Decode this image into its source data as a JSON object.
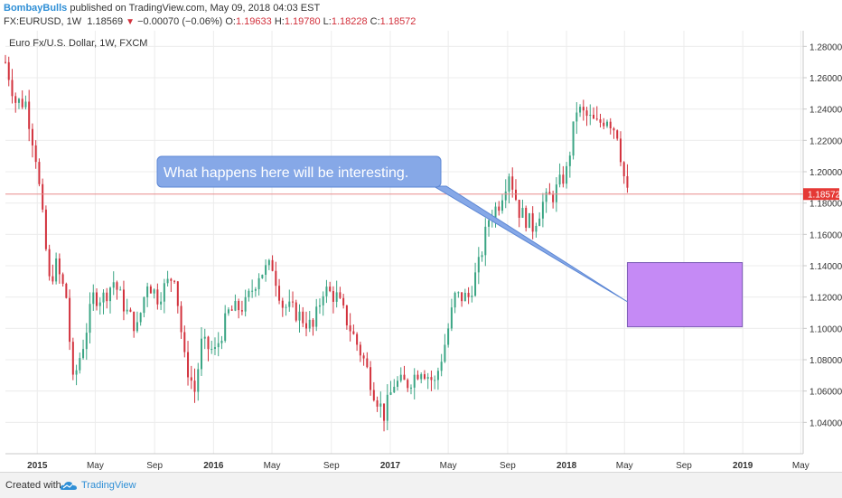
{
  "header": {
    "author": "BombayBulls",
    "published_text": "published on TradingView.com, May 09, 2018 04:03 EST",
    "symbol": "FX:EURUSD, 1W",
    "last": "1.18569",
    "down_arrow": "▼",
    "change": "−0.00070 (−0.06%)",
    "o_label": "O:",
    "o_value": "1.19633",
    "h_label": "H:",
    "h_value": "1.19780",
    "l_label": "L:",
    "l_value": "1.18228",
    "c_label": "C:",
    "c_value": "1.18572"
  },
  "footer": {
    "created_with": "Created with",
    "brand": "TradingView",
    "logo_icon": "tradingview-cloud-icon"
  },
  "colors": {
    "up": "#3aa584",
    "down": "#d2313c",
    "annotation_fill": "#86a8e7",
    "annotation_border": "#5b86d4",
    "box_fill": "#c58af5",
    "box_border": "#7a5cb4",
    "price_line": "#e88b8b",
    "brand": "#2f8fd6"
  },
  "chart_data": {
    "type": "candlestick",
    "title": "Euro Fx/U.S. Dollar, 1W, FXCM",
    "timeframe": "1W",
    "x_range": [
      "2014-10-27",
      "2019-05-06"
    ],
    "ylim": [
      1.02,
      1.29
    ],
    "y_ticks": [
      "1.28000",
      "1.26000",
      "1.24000",
      "1.22000",
      "1.20000",
      "1.18000",
      "1.16000",
      "1.14000",
      "1.12000",
      "1.10000",
      "1.08000",
      "1.06000",
      "1.04000"
    ],
    "x_ticks": [
      {
        "label": "2015",
        "date": "2015-01-01",
        "bold": true
      },
      {
        "label": "May",
        "date": "2015-05-01",
        "bold": false
      },
      {
        "label": "Sep",
        "date": "2015-09-01",
        "bold": false
      },
      {
        "label": "2016",
        "date": "2016-01-01",
        "bold": true
      },
      {
        "label": "May",
        "date": "2016-05-01",
        "bold": false
      },
      {
        "label": "Sep",
        "date": "2016-09-01",
        "bold": false
      },
      {
        "label": "2017",
        "date": "2017-01-01",
        "bold": true
      },
      {
        "label": "May",
        "date": "2017-05-01",
        "bold": false
      },
      {
        "label": "Sep",
        "date": "2017-09-01",
        "bold": false
      },
      {
        "label": "2018",
        "date": "2018-01-01",
        "bold": true
      },
      {
        "label": "May",
        "date": "2018-05-01",
        "bold": false
      },
      {
        "label": "Sep",
        "date": "2018-09-01",
        "bold": false
      },
      {
        "label": "2019",
        "date": "2019-01-01",
        "bold": true
      },
      {
        "label": "May",
        "date": "2019-05-01",
        "bold": false
      }
    ],
    "grid": true,
    "last_price": 1.18572,
    "last_price_label": "1.18572",
    "annotation": {
      "text": "What happens here will be interesting.",
      "pointer_to": {
        "date": "2018-05-07",
        "price": 1.117
      }
    },
    "highlight_box": {
      "date_start": "2018-05-07",
      "date_end": "2018-12-31",
      "price_top": 1.142,
      "price_bottom": 1.101
    },
    "close_path": [
      {
        "date": "2014-10-27",
        "price": 1.27
      },
      {
        "date": "2014-11-17",
        "price": 1.245
      },
      {
        "date": "2014-12-08",
        "price": 1.244
      },
      {
        "date": "2014-12-29",
        "price": 1.21
      },
      {
        "date": "2015-01-12",
        "price": 1.17
      },
      {
        "date": "2015-01-26",
        "price": 1.13
      },
      {
        "date": "2015-02-09",
        "price": 1.14
      },
      {
        "date": "2015-03-02",
        "price": 1.12
      },
      {
        "date": "2015-03-16",
        "price": 1.065
      },
      {
        "date": "2015-04-06",
        "price": 1.09
      },
      {
        "date": "2015-04-27",
        "price": 1.12
      },
      {
        "date": "2015-05-18",
        "price": 1.12
      },
      {
        "date": "2015-06-08",
        "price": 1.13
      },
      {
        "date": "2015-07-06",
        "price": 1.11
      },
      {
        "date": "2015-07-27",
        "price": 1.1
      },
      {
        "date": "2015-08-17",
        "price": 1.13
      },
      {
        "date": "2015-09-07",
        "price": 1.12
      },
      {
        "date": "2015-10-12",
        "price": 1.135
      },
      {
        "date": "2015-11-02",
        "price": 1.08
      },
      {
        "date": "2015-11-23",
        "price": 1.06
      },
      {
        "date": "2015-12-07",
        "price": 1.09
      },
      {
        "date": "2016-01-04",
        "price": 1.085
      },
      {
        "date": "2016-02-01",
        "price": 1.11
      },
      {
        "date": "2016-03-07",
        "price": 1.115
      },
      {
        "date": "2016-04-04",
        "price": 1.135
      },
      {
        "date": "2016-05-02",
        "price": 1.14
      },
      {
        "date": "2016-05-23",
        "price": 1.115
      },
      {
        "date": "2016-06-20",
        "price": 1.11
      },
      {
        "date": "2016-07-25",
        "price": 1.1
      },
      {
        "date": "2016-08-15",
        "price": 1.125
      },
      {
        "date": "2016-09-12",
        "price": 1.12
      },
      {
        "date": "2016-10-10",
        "price": 1.1
      },
      {
        "date": "2016-11-07",
        "price": 1.08
      },
      {
        "date": "2016-11-28",
        "price": 1.06
      },
      {
        "date": "2016-12-19",
        "price": 1.045
      },
      {
        "date": "2017-01-09",
        "price": 1.065
      },
      {
        "date": "2017-02-06",
        "price": 1.065
      },
      {
        "date": "2017-03-06",
        "price": 1.075
      },
      {
        "date": "2017-04-03",
        "price": 1.065
      },
      {
        "date": "2017-04-24",
        "price": 1.09
      },
      {
        "date": "2017-05-15",
        "price": 1.12
      },
      {
        "date": "2017-06-12",
        "price": 1.12
      },
      {
        "date": "2017-07-03",
        "price": 1.14
      },
      {
        "date": "2017-07-24",
        "price": 1.17
      },
      {
        "date": "2017-08-14",
        "price": 1.18
      },
      {
        "date": "2017-09-04",
        "price": 1.2
      },
      {
        "date": "2017-09-25",
        "price": 1.175
      },
      {
        "date": "2017-10-23",
        "price": 1.165
      },
      {
        "date": "2017-11-13",
        "price": 1.18
      },
      {
        "date": "2017-12-04",
        "price": 1.185
      },
      {
        "date": "2018-01-01",
        "price": 1.2
      },
      {
        "date": "2018-01-22",
        "price": 1.24
      },
      {
        "date": "2018-02-12",
        "price": 1.235
      },
      {
        "date": "2018-03-05",
        "price": 1.23
      },
      {
        "date": "2018-03-26",
        "price": 1.235
      },
      {
        "date": "2018-04-16",
        "price": 1.225
      },
      {
        "date": "2018-04-30",
        "price": 1.197
      },
      {
        "date": "2018-05-07",
        "price": 1.1857
      }
    ]
  }
}
